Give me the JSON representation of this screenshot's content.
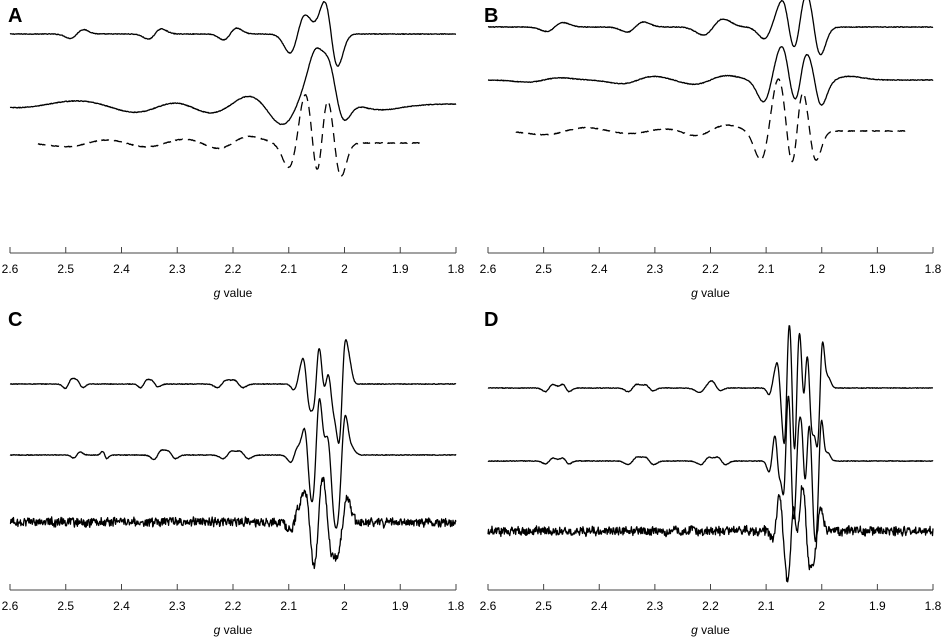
{
  "chart_data": [
    {
      "type": "line",
      "panel": "A",
      "xlabel": "g value",
      "xlabel_italic": "g",
      "xlabel_rest": " value",
      "xlim": [
        2.6,
        1.8
      ],
      "xticks": [
        "2.6",
        "2.5",
        "2.4",
        "2.3",
        "2.2",
        "2.1",
        "2",
        "1.9",
        "1.8"
      ],
      "series": [
        {
          "style": "solid",
          "offset": 0.62,
          "amp": 0.08,
          "range": [
            2.6,
            1.8
          ],
          "features": [
            {
              "g": 2.48,
              "a": 0.6,
              "w": 0.012
            },
            {
              "g": 2.34,
              "a": 0.7,
              "w": 0.012
            },
            {
              "g": 2.205,
              "a": 0.8,
              "w": 0.012
            },
            {
              "g": 2.084,
              "a": 2.6,
              "w": 0.014
            },
            {
              "g": 2.024,
              "a": -4.4,
              "w": 0.012
            }
          ]
        },
        {
          "style": "solid",
          "offset": 0.0,
          "amp": 0.08,
          "range": [
            2.6,
            1.8
          ],
          "features": [
            {
              "g": 2.53,
              "a": 0.5,
              "w": 0.06
            },
            {
              "g": 2.33,
              "a": 1.2,
              "w": 0.05
            },
            {
              "g": 2.2,
              "a": 2.0,
              "w": 0.05
            },
            {
              "g": 2.08,
              "a": 4.2,
              "w": 0.035
            },
            {
              "g": 2.045,
              "a": -1.6,
              "w": 0.012
            },
            {
              "g": 2.018,
              "a": -3.8,
              "w": 0.016
            },
            {
              "g": 1.985,
              "a": -0.8,
              "w": 0.05
            }
          ]
        },
        {
          "style": "dashed",
          "offset": -0.45,
          "amp": 0.08,
          "range": [
            2.55,
            1.86
          ],
          "features": [
            {
              "g": 2.46,
              "a": 0.5,
              "w": 0.04
            },
            {
              "g": 2.32,
              "a": 0.6,
              "w": 0.04
            },
            {
              "g": 2.2,
              "a": 0.9,
              "w": 0.03
            },
            {
              "g": 2.085,
              "a": 3.4,
              "w": 0.015
            },
            {
              "g": 2.058,
              "a": -3.3,
              "w": 0.012
            },
            {
              "g": 2.042,
              "a": 2.1,
              "w": 0.009
            },
            {
              "g": 2.018,
              "a": -4.6,
              "w": 0.012
            }
          ]
        }
      ]
    },
    {
      "type": "line",
      "panel": "B",
      "xlabel": "g value",
      "xlabel_italic": "g",
      "xlabel_rest": " value",
      "xlim": [
        2.6,
        1.8
      ],
      "xticks": [
        "2.6",
        "2.5",
        "2.4",
        "2.3",
        "2.2",
        "2.1",
        "2",
        "1.9",
        "1.8"
      ],
      "series": [
        {
          "style": "solid",
          "offset": 0.62,
          "amp": 0.08,
          "range": [
            2.6,
            1.8
          ],
          "features": [
            {
              "g": 2.48,
              "a": 0.6,
              "w": 0.015
            },
            {
              "g": 2.335,
              "a": 0.7,
              "w": 0.015
            },
            {
              "g": 2.195,
              "a": 1.1,
              "w": 0.018
            },
            {
              "g": 2.09,
              "a": 1.6,
              "w": 0.014
            },
            {
              "g": 2.06,
              "a": -2.2,
              "w": 0.01
            },
            {
              "g": 2.04,
              "a": 0.9,
              "w": 0.008
            },
            {
              "g": 2.014,
              "a": -3.8,
              "w": 0.012
            }
          ]
        },
        {
          "style": "solid",
          "offset": 0.15,
          "amp": 0.08,
          "range": [
            2.6,
            1.8
          ],
          "features": [
            {
              "g": 2.5,
              "a": 0.3,
              "w": 0.03
            },
            {
              "g": 2.33,
              "a": 0.5,
              "w": 0.03
            },
            {
              "g": 2.2,
              "a": 0.6,
              "w": 0.03
            },
            {
              "g": 2.09,
              "a": 3.0,
              "w": 0.015
            },
            {
              "g": 2.06,
              "a": -1.8,
              "w": 0.01
            },
            {
              "g": 2.038,
              "a": 1.2,
              "w": 0.008
            },
            {
              "g": 2.012,
              "a": -3.0,
              "w": 0.012
            },
            {
              "g": 1.98,
              "a": 0.5,
              "w": 0.03
            }
          ]
        },
        {
          "style": "dashed",
          "offset": -0.4,
          "amp": 0.08,
          "range": [
            2.55,
            1.85
          ],
          "features": [
            {
              "g": 2.46,
              "a": 0.5,
              "w": 0.04
            },
            {
              "g": 2.31,
              "a": 0.4,
              "w": 0.04
            },
            {
              "g": 2.2,
              "a": 0.8,
              "w": 0.03
            },
            {
              "g": 2.095,
              "a": 4.0,
              "w": 0.015
            },
            {
              "g": 2.064,
              "a": -3.3,
              "w": 0.012
            },
            {
              "g": 2.045,
              "a": 1.9,
              "w": 0.009
            },
            {
              "g": 2.022,
              "a": -4.0,
              "w": 0.012
            }
          ]
        }
      ]
    },
    {
      "type": "line",
      "panel": "C",
      "xlabel": "g value",
      "xlabel_italic": "g",
      "xlabel_rest": " value",
      "xlim": [
        2.6,
        1.8
      ],
      "xticks": [
        "2.6",
        "2.5",
        "2.4",
        "2.3",
        "2.2",
        "2.1",
        "2",
        "1.9",
        "1.8"
      ],
      "series": [
        {
          "style": "solid",
          "offset": 0.55,
          "amp": 0.08,
          "range": [
            2.6,
            1.8
          ],
          "features": [
            {
              "g": 2.495,
              "a": 0.6,
              "w": 0.006
            },
            {
              "g": 2.475,
              "a": -0.5,
              "w": 0.006
            },
            {
              "g": 2.36,
              "a": 0.5,
              "w": 0.006
            },
            {
              "g": 2.34,
              "a": -0.4,
              "w": 0.006
            },
            {
              "g": 2.22,
              "a": 0.5,
              "w": 0.008
            },
            {
              "g": 2.19,
              "a": -0.5,
              "w": 0.008
            },
            {
              "g": 2.085,
              "a": 0.8,
              "w": 0.006
            },
            {
              "g": 2.068,
              "a": -3.0,
              "w": 0.006
            },
            {
              "g": 2.05,
              "a": 2.4,
              "w": 0.005
            },
            {
              "g": 2.04,
              "a": -2.5,
              "w": 0.006
            },
            {
              "g": 2.025,
              "a": -3.0,
              "w": 0.006
            },
            {
              "g": 2.004,
              "a": 7.5,
              "w": 0.006
            },
            {
              "g": 1.994,
              "a": 1.5,
              "w": 0.005
            }
          ]
        },
        {
          "style": "solid",
          "offset": 0.0,
          "amp": 0.08,
          "range": [
            2.6,
            1.8
          ],
          "features": [
            {
              "g": 2.48,
              "a": 0.4,
              "w": 0.006
            },
            {
              "g": 2.43,
              "a": -0.5,
              "w": 0.004
            },
            {
              "g": 2.335,
              "a": 0.6,
              "w": 0.007
            },
            {
              "g": 2.31,
              "a": -0.5,
              "w": 0.007
            },
            {
              "g": 2.21,
              "a": 0.5,
              "w": 0.008
            },
            {
              "g": 2.18,
              "a": -0.5,
              "w": 0.008
            },
            {
              "g": 2.09,
              "a": 1.0,
              "w": 0.007
            },
            {
              "g": 2.066,
              "a": -3.5,
              "w": 0.006
            },
            {
              "g": 2.05,
              "a": 4.2,
              "w": 0.006
            },
            {
              "g": 2.04,
              "a": -3.5,
              "w": 0.007
            },
            {
              "g": 2.025,
              "a": -5.8,
              "w": 0.007
            },
            {
              "g": 2.005,
              "a": 6.0,
              "w": 0.007
            },
            {
              "g": 1.99,
              "a": 0.6,
              "w": 0.006
            }
          ]
        },
        {
          "style": "solid",
          "offset": -0.52,
          "amp": 0.08,
          "noise": 0.65,
          "range": [
            2.6,
            1.8
          ],
          "features": [
            {
              "g": 2.09,
              "a": 1.2,
              "w": 0.008
            },
            {
              "g": 2.063,
              "a": -4.0,
              "w": 0.008
            },
            {
              "g": 2.047,
              "a": 2.5,
              "w": 0.006
            },
            {
              "g": 2.03,
              "a": -4.0,
              "w": 0.008
            },
            {
              "g": 2.003,
              "a": 3.2,
              "w": 0.008
            }
          ]
        }
      ]
    },
    {
      "type": "line",
      "panel": "D",
      "xlabel": "g value",
      "xlabel_italic": "g",
      "xlabel_rest": " value",
      "xlim": [
        2.6,
        1.8
      ],
      "xticks": [
        "2.6",
        "2.5",
        "2.4",
        "2.3",
        "2.2",
        "2.1",
        "2",
        "1.9",
        "1.8"
      ],
      "series": [
        {
          "style": "solid",
          "offset": 0.55,
          "amp": 0.08,
          "range": [
            2.6,
            1.8
          ],
          "features": [
            {
              "g": 2.49,
              "a": 0.5,
              "w": 0.007
            },
            {
              "g": 2.46,
              "a": -0.5,
              "w": 0.006
            },
            {
              "g": 2.34,
              "a": 0.5,
              "w": 0.008
            },
            {
              "g": 2.31,
              "a": -0.4,
              "w": 0.007
            },
            {
              "g": 2.21,
              "a": 0.6,
              "w": 0.01
            },
            {
              "g": 2.19,
              "a": -0.4,
              "w": 0.007
            },
            {
              "g": 2.09,
              "a": 0.9,
              "w": 0.005
            },
            {
              "g": 2.075,
              "a": -3.0,
              "w": 0.005
            },
            {
              "g": 2.063,
              "a": 5.3,
              "w": 0.004
            },
            {
              "g": 2.053,
              "a": -4.0,
              "w": 0.004
            },
            {
              "g": 2.045,
              "a": 4.5,
              "w": 0.004
            },
            {
              "g": 2.035,
              "a": -3.5,
              "w": 0.004
            },
            {
              "g": 2.022,
              "a": -5.6,
              "w": 0.005
            },
            {
              "g": 2.003,
              "a": 7.5,
              "w": 0.005
            },
            {
              "g": 1.992,
              "a": 1.2,
              "w": 0.005
            }
          ]
        },
        {
          "style": "solid",
          "offset": 0.0,
          "amp": 0.08,
          "range": [
            2.6,
            1.8
          ],
          "features": [
            {
              "g": 2.49,
              "a": 0.4,
              "w": 0.007
            },
            {
              "g": 2.46,
              "a": -0.4,
              "w": 0.006
            },
            {
              "g": 2.34,
              "a": 0.5,
              "w": 0.008
            },
            {
              "g": 2.31,
              "a": -0.5,
              "w": 0.008
            },
            {
              "g": 2.21,
              "a": 0.5,
              "w": 0.008
            },
            {
              "g": 2.18,
              "a": -0.5,
              "w": 0.007
            },
            {
              "g": 2.09,
              "a": 1.5,
              "w": 0.005
            },
            {
              "g": 2.08,
              "a": -2.0,
              "w": 0.004
            },
            {
              "g": 2.065,
              "a": 4.5,
              "w": 0.004
            },
            {
              "g": 2.055,
              "a": -5.0,
              "w": 0.004
            },
            {
              "g": 2.045,
              "a": 3.5,
              "w": 0.004
            },
            {
              "g": 2.033,
              "a": -4.0,
              "w": 0.004
            },
            {
              "g": 2.018,
              "a": -5.5,
              "w": 0.005
            },
            {
              "g": 2.005,
              "a": 6.5,
              "w": 0.005
            },
            {
              "g": 1.993,
              "a": 1.0,
              "w": 0.005
            }
          ]
        },
        {
          "style": "solid",
          "offset": -0.55,
          "amp": 0.08,
          "noise": 0.65,
          "range": [
            2.6,
            1.8
          ],
          "features": [
            {
              "g": 2.082,
              "a": 1.2,
              "w": 0.006
            },
            {
              "g": 2.07,
              "a": -3.5,
              "w": 0.006
            },
            {
              "g": 2.055,
              "a": 4.2,
              "w": 0.005
            },
            {
              "g": 2.04,
              "a": 2.0,
              "w": 0.005
            },
            {
              "g": 2.028,
              "a": -4.5,
              "w": 0.006
            },
            {
              "g": 2.008,
              "a": 3.0,
              "w": 0.006
            }
          ]
        }
      ]
    }
  ]
}
